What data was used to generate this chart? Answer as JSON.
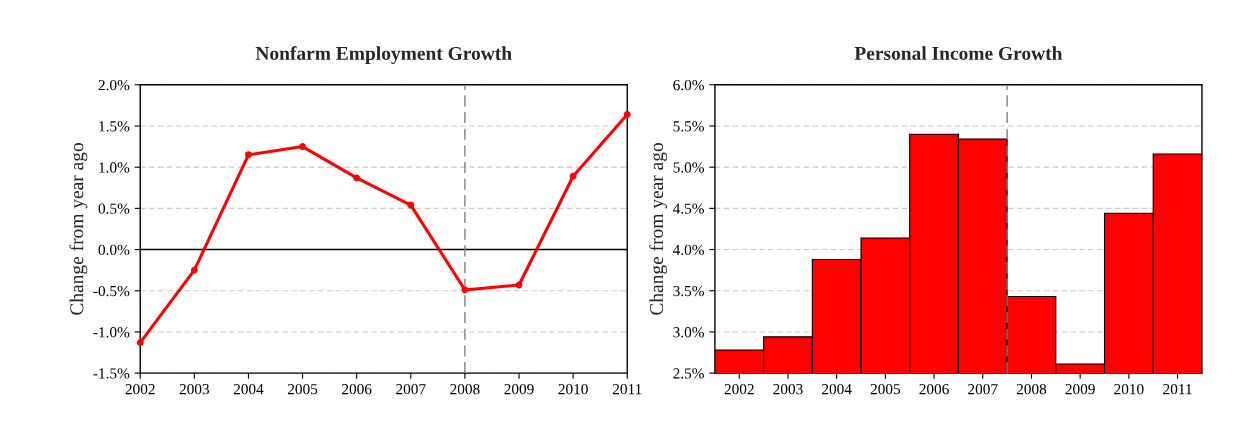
{
  "chart_data": [
    {
      "type": "line",
      "title": "Nonfarm Employment Growth",
      "ylabel": "Change from year ago",
      "x": [
        2002,
        2003,
        2004,
        2005,
        2006,
        2007,
        2008,
        2009,
        2010,
        2011
      ],
      "series": [
        {
          "color": "#ff0000",
          "values": [
            -1.13,
            -0.25,
            1.15,
            1.25,
            0.87,
            0.54,
            -0.49,
            -0.43,
            0.89,
            1.64
          ]
        }
      ],
      "xlim": [
        2002,
        2011
      ],
      "xticks": [
        2002,
        2003,
        2004,
        2005,
        2006,
        2007,
        2008,
        2009,
        2010,
        2011
      ],
      "ylim": [
        -1.5,
        2.0
      ],
      "yticks": [
        {
          "value": -1.5,
          "label": "-1.5%"
        },
        {
          "value": -1.0,
          "label": "-1.0%"
        },
        {
          "value": -0.5,
          "label": "-0.5%"
        },
        {
          "value": 0,
          "label": "0.0%"
        },
        {
          "value": 0.5,
          "label": "0.5%"
        },
        {
          "value": 1.0,
          "label": "1.0%"
        },
        {
          "value": 1.5,
          "label": "1.5%"
        },
        {
          "value": 2.0,
          "label": "2.0%"
        }
      ],
      "ref_lines": [
        {
          "axis": "y",
          "value": 0,
          "color": "#000000",
          "line_style": "solid"
        },
        {
          "axis": "x",
          "value": 2008,
          "color": "#808080",
          "line_style": "dashed"
        }
      ],
      "grid": "y",
      "marker": "circle",
      "line_style": "solid"
    },
    {
      "type": "bar",
      "title": "Personal Income Growth",
      "ylabel": "Change from year ago",
      "x": [
        2002,
        2003,
        2004,
        2005,
        2006,
        2007,
        2008,
        2009,
        2010,
        2011
      ],
      "series": [
        {
          "color": "#ff0000",
          "values": [
            2.78,
            2.94,
            3.88,
            4.14,
            5.4,
            5.34,
            3.43,
            2.61,
            4.44,
            5.16
          ]
        }
      ],
      "xlim": [
        2001.5,
        2011.5
      ],
      "xticks": [
        2002,
        2003,
        2004,
        2005,
        2006,
        2007,
        2008,
        2009,
        2010,
        2011
      ],
      "ylim": [
        2.5,
        6.0
      ],
      "yticks": [
        {
          "value": 2.5,
          "label": "2.5%"
        },
        {
          "value": 3.0,
          "label": "3.0%"
        },
        {
          "value": 3.5,
          "label": "3.5%"
        },
        {
          "value": 4.0,
          "label": "4.0%"
        },
        {
          "value": 4.5,
          "label": "4.5%"
        },
        {
          "value": 5.0,
          "label": "5.0%"
        },
        {
          "value": 5.5,
          "label": "5.5%"
        },
        {
          "value": 6.0,
          "label": "6.0%"
        }
      ],
      "ref_lines": [
        {
          "axis": "x",
          "value": 2007.5,
          "color": "#808080",
          "line_style": "dashed"
        }
      ],
      "grid": "y"
    }
  ]
}
